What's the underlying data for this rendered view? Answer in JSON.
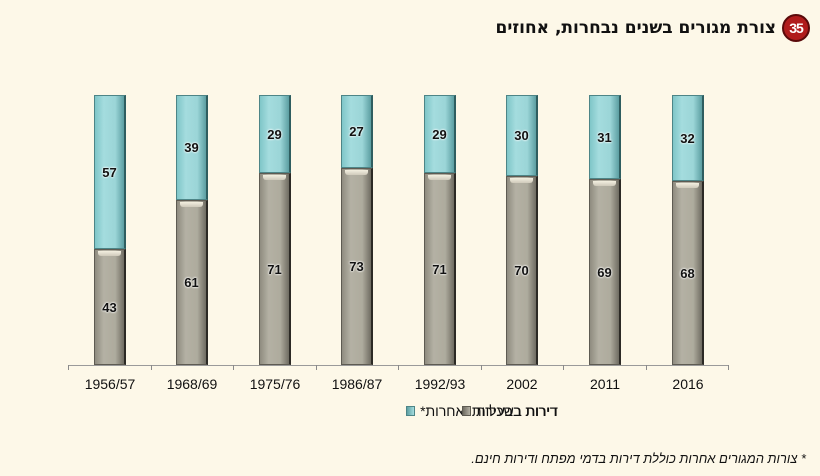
{
  "header": {
    "badge_number": "35",
    "title": "צורת מגורים בשנים נבחרות, אחוזים"
  },
  "legend": {
    "owned_label": "דירות בבעלות",
    "rented_label": "דירות בשכירות ואחרות*"
  },
  "footnote": "* צורות המגורים אחרות כוללת דירות בדמי מפתח ודירות חינם.",
  "colors": {
    "background": "#fdf8e8",
    "owned": "#aeab9d",
    "rented": "#9bd5d7",
    "badge": "#b01c1c"
  },
  "chart_data": {
    "type": "bar",
    "stacked": true,
    "percent": true,
    "title": "צורת מגורים בשנים נבחרות, אחוזים",
    "xlabel": "",
    "ylabel": "",
    "ylim": [
      0,
      100
    ],
    "grid": false,
    "legend_position": "bottom",
    "categories": [
      "1956/57",
      "1968/69",
      "1975/76",
      "1986/87",
      "1992/93",
      "2002",
      "2011",
      "2016"
    ],
    "series": [
      {
        "name": "דירות בבעלות",
        "color": "#aeab9d",
        "values": [
          43,
          61,
          71,
          73,
          71,
          70,
          69,
          68
        ]
      },
      {
        "name": "דירות בשכירות ואחרות*",
        "color": "#9bd5d7",
        "values": [
          57,
          39,
          29,
          27,
          29,
          30,
          31,
          32
        ]
      }
    ],
    "annotations": [
      "* צורות המגורים אחרות כוללת דירות בדמי מפתח ודירות חינם."
    ]
  },
  "bars": [
    {
      "label": "1956/57",
      "own": "43",
      "rent": "57"
    },
    {
      "label": "1968/69",
      "own": "61",
      "rent": "39"
    },
    {
      "label": "1975/76",
      "own": "71",
      "rent": "29"
    },
    {
      "label": "1986/87",
      "own": "73",
      "rent": "27"
    },
    {
      "label": "1992/93",
      "own": "71",
      "rent": "29"
    },
    {
      "label": "2002",
      "own": "70",
      "rent": "30"
    },
    {
      "label": "2011",
      "own": "69",
      "rent": "31"
    },
    {
      "label": "2016",
      "own": "68",
      "rent": "32"
    }
  ]
}
